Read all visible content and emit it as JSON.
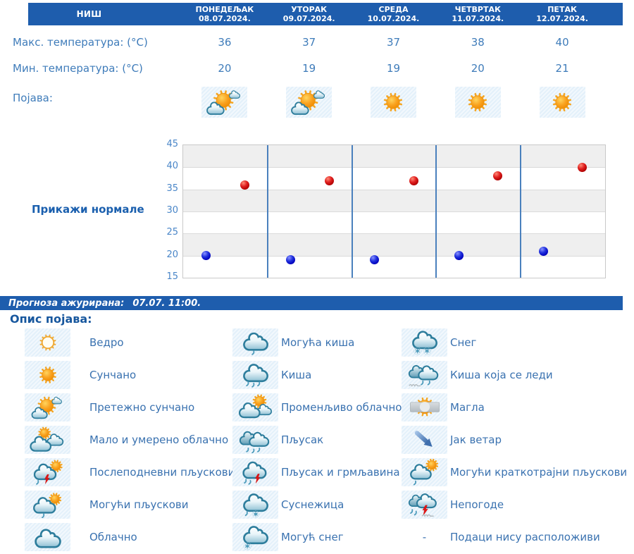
{
  "forecast_table": {
    "location": "НИШ",
    "row_labels": {
      "max": "Макс. температура: (°C)",
      "min": "Мин. температура: (°C)",
      "phenomenon": "Појава:"
    },
    "days": [
      {
        "day": "ПОНЕДЕЉАК",
        "date": "08.07.2024.",
        "max": "36",
        "min": "20",
        "icon": "mostly-sunny"
      },
      {
        "day": "УТОРАК",
        "date": "09.07.2024.",
        "max": "37",
        "min": "19",
        "icon": "mostly-sunny"
      },
      {
        "day": "СРЕДА",
        "date": "10.07.2024.",
        "max": "37",
        "min": "19",
        "icon": "sunny"
      },
      {
        "day": "ЧЕТВРТАК",
        "date": "11.07.2024.",
        "max": "38",
        "min": "20",
        "icon": "sunny"
      },
      {
        "day": "ПЕТАК",
        "date": "12.07.2024.",
        "max": "40",
        "min": "21",
        "icon": "sunny"
      }
    ]
  },
  "chart": {
    "normals_link": "Прикажи нормале"
  },
  "chart_data": {
    "type": "scatter",
    "categories": [
      "ПОНЕДЕЉАК 08.07.2024.",
      "УТОРАК 09.07.2024.",
      "СРЕДА 10.07.2024.",
      "ЧЕТВРТАК 11.07.2024.",
      "ПЕТАК 12.07.2024."
    ],
    "series": [
      {
        "name": "Макс. температура (°C)",
        "color": "#cc0000",
        "values": [
          36,
          37,
          37,
          38,
          40
        ]
      },
      {
        "name": "Мин. температура (°C)",
        "color": "#0000cc",
        "values": [
          20,
          19,
          19,
          20,
          21
        ]
      }
    ],
    "ylim": [
      15,
      45
    ],
    "yticks": [
      45,
      40,
      35,
      30,
      25,
      20,
      15
    ],
    "grid": "alternating horizontal bands, vertical day separators",
    "legend_position": "none"
  },
  "status_bar": {
    "label": "Прогноза ажурирана:",
    "value": "07.07. 11:00."
  },
  "legend": {
    "title": "Опис појава:",
    "no_data_symbol": "-",
    "columns": [
      [
        {
          "icon": "clear",
          "label": "Ведро"
        },
        {
          "icon": "sunny",
          "label": "Сунчано"
        },
        {
          "icon": "mostly-sunny",
          "label": "Претежно сунчано"
        },
        {
          "icon": "partly-cloudy",
          "label": "Мало и умерено облачно"
        },
        {
          "icon": "afternoon-showers",
          "label": "Послеподневни пљускови"
        },
        {
          "icon": "possible-showers",
          "label": "Могући пљускови"
        },
        {
          "icon": "cloudy",
          "label": "Облачно"
        }
      ],
      [
        {
          "icon": "possible-rain",
          "label": "Могућа киша"
        },
        {
          "icon": "rain",
          "label": "Киша"
        },
        {
          "icon": "variable-clouds",
          "label": "Променљиво облачно"
        },
        {
          "icon": "shower",
          "label": "Пљусак"
        },
        {
          "icon": "thunder-shower",
          "label": "Пљусак и грмљавина"
        },
        {
          "icon": "sleet",
          "label": "Суснежица"
        },
        {
          "icon": "possible-snow",
          "label": "Могућ снег"
        }
      ],
      [
        {
          "icon": "snow",
          "label": "Снег"
        },
        {
          "icon": "freezing-rain",
          "label": "Киша која се леди"
        },
        {
          "icon": "fog",
          "label": "Магла"
        },
        {
          "icon": "strong-wind",
          "label": "Јак ветар"
        },
        {
          "icon": "possible-brief-showers",
          "label": "Могући краткотрајни пљускови"
        },
        {
          "icon": "storm",
          "label": "Непогоде"
        },
        {
          "icon": "no-data",
          "label": "Подаци нису расположиви"
        }
      ]
    ]
  },
  "colors": {
    "header_bar": "#1e5dad",
    "text_blue": "#3f7cba",
    "link_blue": "#1a5fae",
    "max_point": "#cc0000",
    "min_point": "#0000cc",
    "day_separator": "#4a80bd",
    "band_gray": "#efefef",
    "icon_cell_bg": "#e3f0fa"
  }
}
